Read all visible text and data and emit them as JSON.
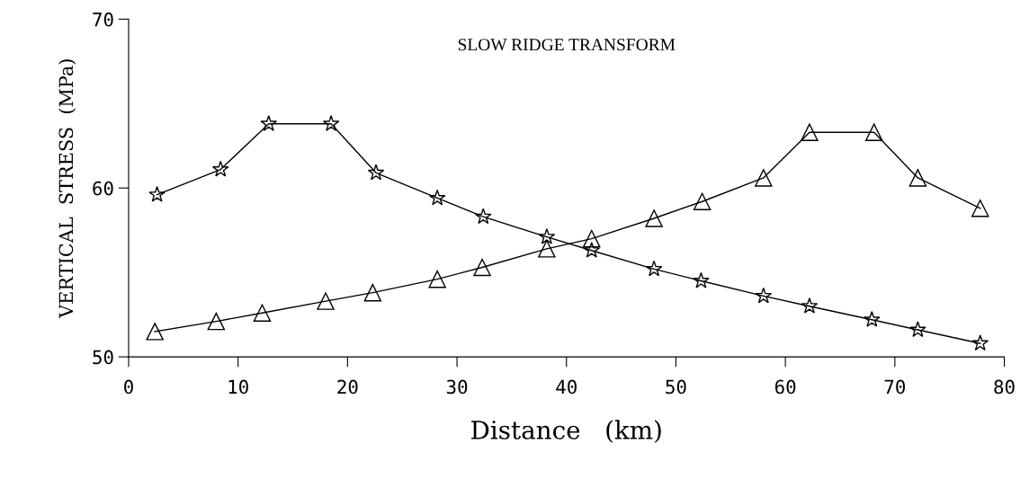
{
  "chart_data": {
    "type": "line",
    "title": "SLOW RIDGE TRANSFORM",
    "xlabel": "Distance   (km)",
    "ylabel": "VERTICAL  STRESS  (MPa)",
    "xlim": [
      0,
      80
    ],
    "ylim": [
      50,
      70
    ],
    "xticks": [
      0,
      10,
      20,
      30,
      40,
      50,
      60,
      70,
      80
    ],
    "yticks": [
      50,
      60,
      70
    ],
    "grid": false,
    "legend": false,
    "line_style": "solid",
    "series": [
      {
        "color": "#000000",
        "marker": "star",
        "x": [
          2.6,
          8.4,
          12.8,
          18.5,
          22.6,
          28.2,
          32.4,
          38.2,
          42.3,
          48.0,
          52.3,
          58.0,
          62.2,
          67.9,
          72.1,
          77.8
        ],
        "values": [
          59.6,
          61.1,
          63.8,
          63.8,
          60.9,
          59.4,
          58.3,
          57.1,
          56.3,
          55.2,
          54.5,
          53.6,
          53.0,
          52.2,
          51.6,
          50.8
        ]
      },
      {
        "color": "#000000",
        "marker": "triangle",
        "x": [
          2.4,
          8.0,
          12.2,
          18.0,
          22.3,
          28.2,
          32.3,
          38.2,
          42.3,
          48.0,
          52.4,
          58.0,
          62.2,
          68.1,
          72.1,
          77.8
        ],
        "values": [
          51.5,
          52.1,
          52.6,
          53.3,
          53.8,
          54.6,
          55.3,
          56.4,
          57.0,
          58.2,
          59.2,
          60.6,
          63.3,
          63.3,
          60.6,
          58.8
        ]
      }
    ]
  }
}
